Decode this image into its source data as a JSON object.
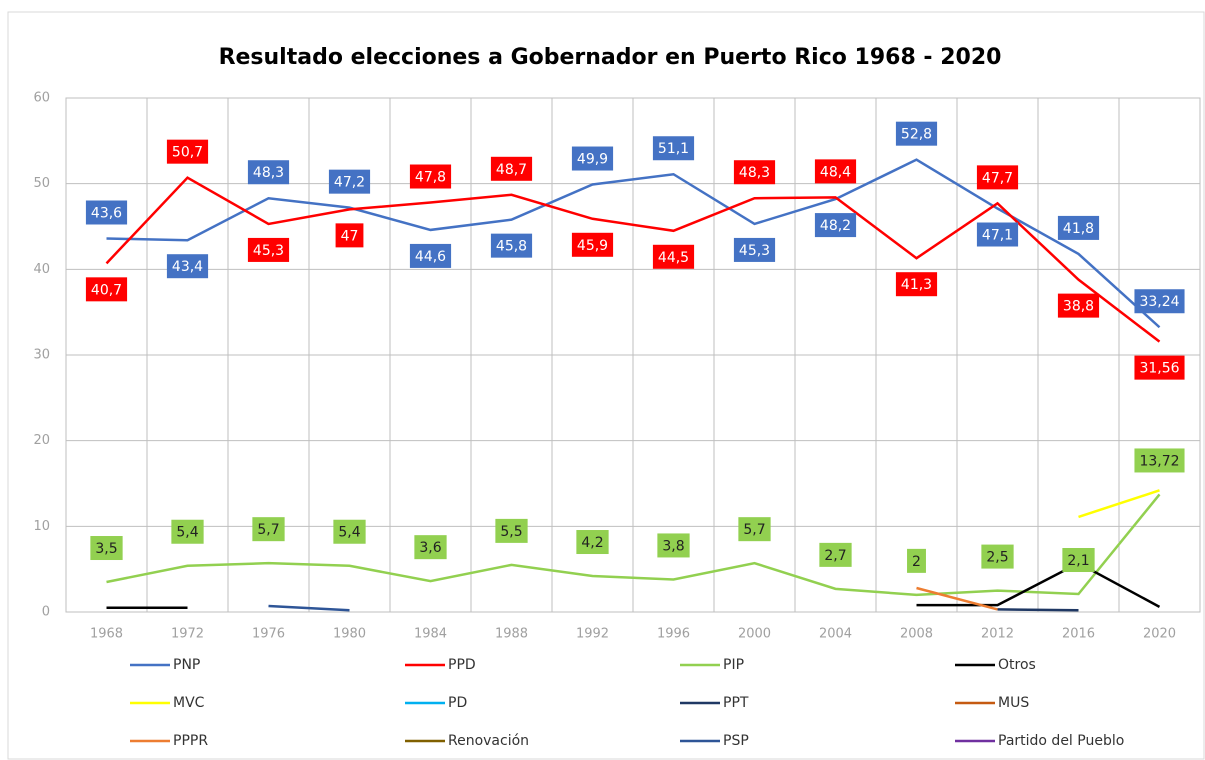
{
  "chart_data": {
    "type": "line",
    "title": "Resultado elecciones a Gobernador en Puerto Rico 1968 - 2020",
    "categories": [
      "1968",
      "1972",
      "1976",
      "1980",
      "1984",
      "1988",
      "1992",
      "1996",
      "2000",
      "2004",
      "2008",
      "2012",
      "2016",
      "2020"
    ],
    "ylim": [
      0,
      60
    ],
    "yticks": [
      0,
      10,
      20,
      30,
      40,
      50,
      60
    ],
    "grid": true,
    "legend": "bottom",
    "series": [
      {
        "name": "PNP",
        "color": "#4472c4",
        "values": [
          43.6,
          43.4,
          48.3,
          47.2,
          44.6,
          45.8,
          49.9,
          51.1,
          45.3,
          48.2,
          52.8,
          47.1,
          41.8,
          33.24
        ],
        "value_labels": [
          "43,6",
          "43,4",
          "48,3",
          "47,2",
          "44,6",
          "45,8",
          "49,9",
          "51,1",
          "45,3",
          "48,2",
          "52,8",
          "47,1",
          "41,8",
          "33,24"
        ]
      },
      {
        "name": "PPD",
        "color": "#ff0000",
        "values": [
          40.7,
          50.7,
          45.3,
          47,
          47.8,
          48.7,
          45.9,
          44.5,
          48.3,
          48.4,
          41.3,
          47.7,
          38.8,
          31.56
        ],
        "value_labels": [
          "40,7",
          "50,7",
          "45,3",
          "47",
          "47,8",
          "48,7",
          "45,9",
          "44,5",
          "48,3",
          "48,4",
          "41,3",
          "47,7",
          "38,8",
          "31,56"
        ]
      },
      {
        "name": "PIP",
        "color": "#92d050",
        "values": [
          3.5,
          5.4,
          5.7,
          5.4,
          3.6,
          5.5,
          4.2,
          3.8,
          5.7,
          2.7,
          2,
          2.5,
          2.1,
          13.72
        ],
        "value_labels": [
          "3,5",
          "5,4",
          "5,7",
          "5,4",
          "3,6",
          "5,5",
          "4,2",
          "3,8",
          "5,7",
          "2,7",
          "2",
          "2,5",
          "2,1",
          "13,72"
        ]
      },
      {
        "name": "Otros",
        "color": "#000000",
        "values": [
          0.5,
          0.5,
          null,
          null,
          null,
          null,
          null,
          null,
          null,
          null,
          0.8,
          0.8,
          5.7,
          0.6
        ]
      },
      {
        "name": "MVC",
        "color": "#ffff00",
        "values": [
          null,
          null,
          null,
          null,
          null,
          null,
          null,
          null,
          null,
          null,
          null,
          null,
          11.1,
          14.2
        ]
      },
      {
        "name": "PD",
        "color": "#00b0f0",
        "values": [
          null,
          null,
          null,
          null,
          null,
          null,
          null,
          null,
          null,
          null,
          null,
          null,
          null,
          null
        ]
      },
      {
        "name": "PPT",
        "color": "#1f3864",
        "values": [
          null,
          null,
          null,
          null,
          null,
          null,
          null,
          null,
          null,
          null,
          null,
          0.3,
          0.2,
          null
        ]
      },
      {
        "name": "MUS",
        "color": "#c55a11",
        "values": [
          null,
          null,
          null,
          null,
          null,
          null,
          null,
          null,
          null,
          null,
          null,
          null,
          null,
          null
        ]
      },
      {
        "name": "PPPR",
        "color": "#ed7d31",
        "values": [
          null,
          null,
          null,
          null,
          null,
          null,
          null,
          null,
          null,
          null,
          2.8,
          0.3,
          null,
          null
        ]
      },
      {
        "name": "Renovación",
        "color": "#806000",
        "values": [
          null,
          null,
          null,
          null,
          null,
          null,
          null,
          null,
          null,
          null,
          null,
          null,
          null,
          null
        ]
      },
      {
        "name": "PSP",
        "color": "#2e5597",
        "values": [
          null,
          null,
          0.7,
          0.2,
          null,
          null,
          null,
          null,
          null,
          null,
          null,
          null,
          null,
          null
        ]
      },
      {
        "name": "Partido del Pueblo",
        "color": "#7030a0",
        "values": [
          null,
          null,
          null,
          null,
          null,
          null,
          null,
          null,
          null,
          null,
          null,
          null,
          null,
          null
        ]
      }
    ]
  }
}
